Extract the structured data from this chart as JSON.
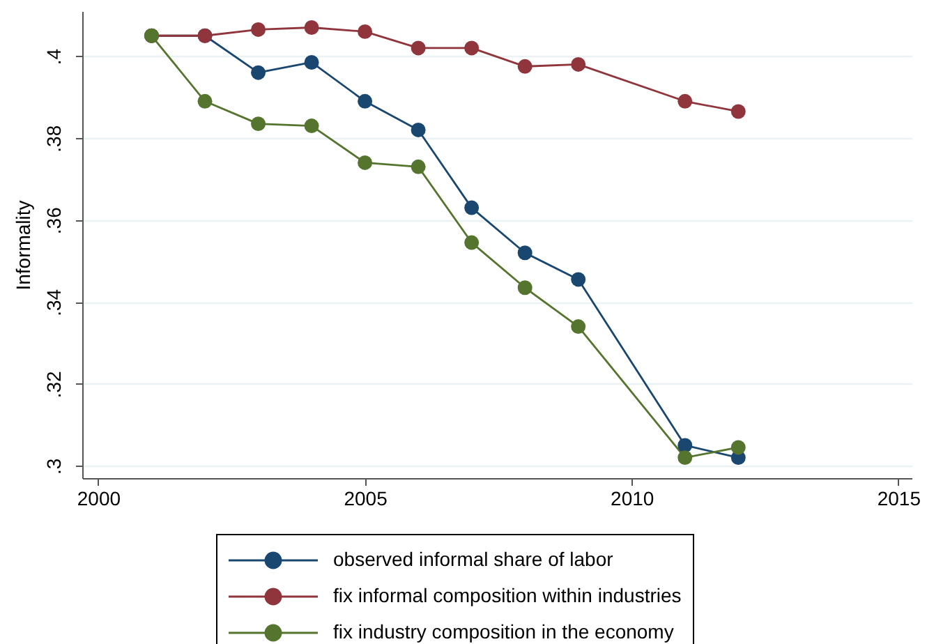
{
  "chart_data": {
    "type": "line",
    "ylabel": "Informality",
    "x": [
      2001,
      2002,
      2003,
      2004,
      2005,
      2006,
      2007,
      2008,
      2009,
      2011,
      2012
    ],
    "series": [
      {
        "name": "observed informal share of labor",
        "color": "#1a476f",
        "values": [
          0.405,
          0.405,
          0.396,
          0.3985,
          0.389,
          0.382,
          0.363,
          0.352,
          0.3455,
          0.305,
          0.302
        ]
      },
      {
        "name": "fix informal composition within industries",
        "color": "#90353b",
        "values": [
          0.405,
          0.405,
          0.4065,
          0.407,
          0.406,
          0.402,
          0.402,
          0.3975,
          0.398,
          0.389,
          0.3865
        ]
      },
      {
        "name": "fix industry composition in the economy",
        "color": "#55752f",
        "values": [
          0.405,
          0.389,
          0.3835,
          0.383,
          0.374,
          0.373,
          0.3545,
          0.3435,
          0.334,
          0.302,
          0.3045
        ]
      }
    ],
    "xlim": [
      1999.7,
      2015.25
    ],
    "xticks": [
      2000,
      2005,
      2010,
      2015
    ],
    "ylim": [
      0.297,
      0.411
    ],
    "yticks": [
      {
        "value": 0.3,
        "label": ".3"
      },
      {
        "value": 0.32,
        "label": ".32"
      },
      {
        "value": 0.34,
        "label": ".34"
      },
      {
        "value": 0.36,
        "label": ".36"
      },
      {
        "value": 0.38,
        "label": ".38"
      },
      {
        "value": 0.4,
        "label": ".4"
      }
    ],
    "grid": "y",
    "legend": "bottom",
    "marker": "circle",
    "line_style": "solid"
  }
}
